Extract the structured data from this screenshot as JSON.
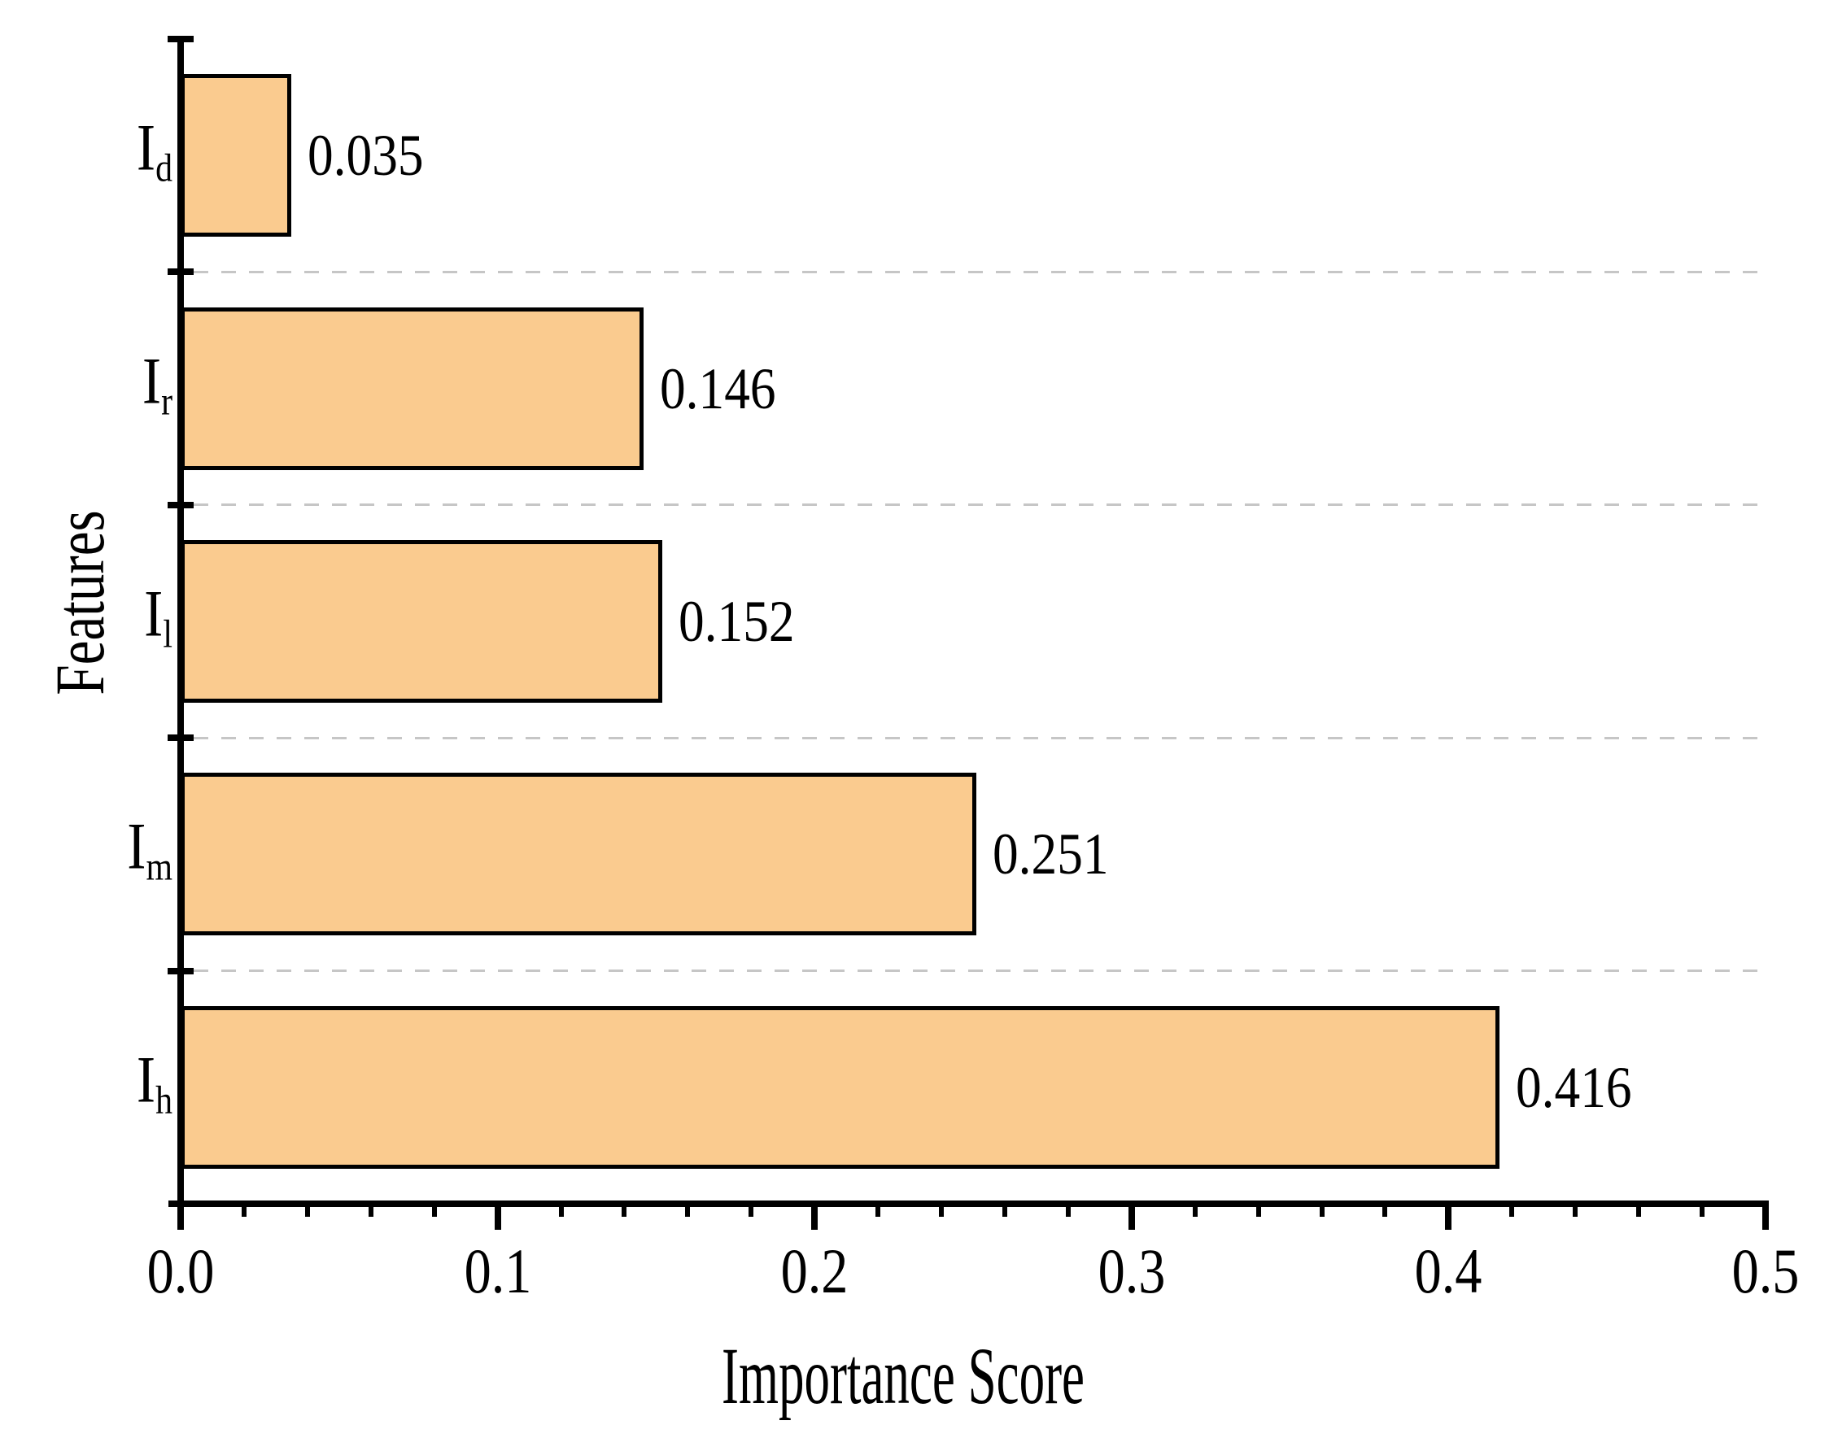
{
  "chart_data": {
    "type": "bar",
    "orientation": "horizontal",
    "title": "",
    "xlabel": "Importance Score",
    "ylabel": "Features",
    "categories": [
      {
        "base": "I",
        "sub": "d"
      },
      {
        "base": "I",
        "sub": "r"
      },
      {
        "base": "I",
        "sub": "l"
      },
      {
        "base": "I",
        "sub": "m"
      },
      {
        "base": "I",
        "sub": "h"
      }
    ],
    "values": [
      0.035,
      0.146,
      0.152,
      0.251,
      0.416
    ],
    "value_labels": [
      "0.035",
      "0.146",
      "0.152",
      "0.251",
      "0.416"
    ],
    "xlim": [
      0.0,
      0.5
    ],
    "x_major_ticks": [
      0.0,
      0.1,
      0.2,
      0.3,
      0.4,
      0.5
    ],
    "x_tick_labels": [
      "0.0",
      "0.1",
      "0.2",
      "0.3",
      "0.4",
      "0.5"
    ],
    "x_minor_tick_step": 0.02,
    "grid": "dashed gray horizontal separators between category bands",
    "legend": "none",
    "colors": {
      "bar_fill": "#FACB8F",
      "bar_edge": "#000000",
      "axis": "#000000",
      "gridline": "#c6c6c6",
      "background": "#ffffff",
      "text": "#000000"
    }
  }
}
